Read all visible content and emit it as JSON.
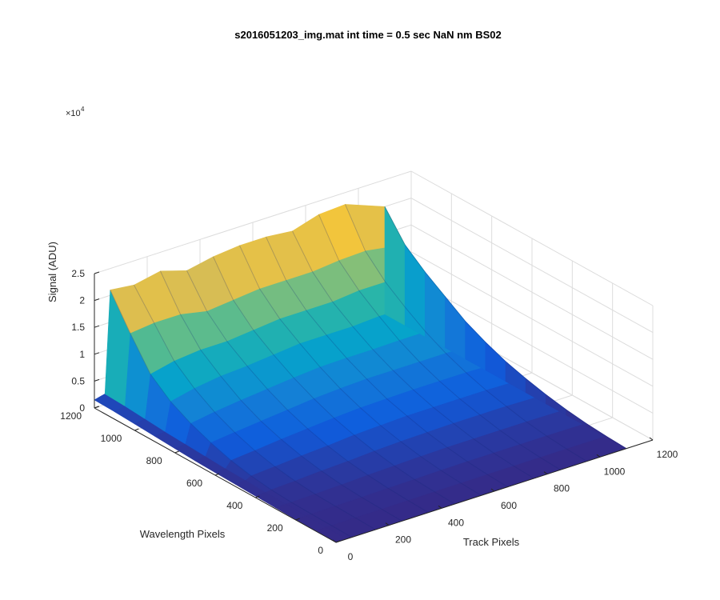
{
  "chart_data": {
    "type": "area",
    "title": "s2016051203_img.mat int time = 0.5 sec  NaN nm BS02",
    "xlabel": "Track Pixels",
    "ylabel": "Wavelength Pixels",
    "zlabel": "Signal (ADU)",
    "z_exponent_base": "×10",
    "z_exponent": "4",
    "xlim": [
      0,
      1200
    ],
    "ylim": [
      0,
      1200
    ],
    "zlim": [
      0,
      25000
    ],
    "x_ticks": [
      "0",
      "200",
      "400",
      "600",
      "800",
      "1000",
      "1200"
    ],
    "y_ticks": [
      "0",
      "200",
      "400",
      "600",
      "800",
      "1000",
      "1200"
    ],
    "z_ticks": [
      "0",
      "0.5",
      "1",
      "1.5",
      "2",
      "2.5"
    ],
    "grid": true,
    "colormap": [
      "#352a87",
      "#0f5cdd",
      "#1481d6",
      "#06a4ca",
      "#2eb7a4",
      "#87bf77",
      "#d1bb59",
      "#fec832",
      "#f9fb0e"
    ],
    "surface": {
      "track_extent": [
        0,
        1100
      ],
      "wavelength_extent": [
        0,
        1200
      ],
      "series": [
        {
          "wavelength": 1200,
          "values": [
            1500,
            2000,
            21000,
            20500,
            21500,
            20000,
            21000,
            21500,
            21500,
            21000,
            22500,
            22800,
            20000
          ]
        },
        {
          "wavelength": 1100,
          "values": [
            1400,
            1800,
            15000,
            15500,
            15500,
            14500,
            15000,
            15500,
            15500,
            15500,
            16000,
            16200,
            15000
          ]
        },
        {
          "wavelength": 1000,
          "values": [
            1200,
            1500,
            9500,
            10500,
            11000,
            11000,
            11500,
            12000,
            12000,
            12000,
            12500,
            12500,
            12000
          ]
        },
        {
          "wavelength": 900,
          "values": [
            1000,
            1200,
            6500,
            7500,
            8200,
            8500,
            9000,
            9500,
            9500,
            9500,
            9800,
            9800,
            9500
          ]
        },
        {
          "wavelength": 800,
          "values": [
            800,
            1000,
            4500,
            5200,
            5800,
            6300,
            6800,
            7200,
            7300,
            7300,
            7400,
            7400,
            7000
          ]
        },
        {
          "wavelength": 700,
          "values": [
            600,
            800,
            3000,
            3500,
            4000,
            4500,
            5000,
            5300,
            5500,
            5500,
            5500,
            5500,
            5200
          ]
        },
        {
          "wavelength": 600,
          "values": [
            500,
            600,
            1800,
            2200,
            2700,
            3100,
            3500,
            3800,
            3900,
            4000,
            4000,
            4000,
            3700
          ]
        },
        {
          "wavelength": 500,
          "values": [
            400,
            500,
            1000,
            1300,
            1700,
            2000,
            2400,
            2600,
            2800,
            2800,
            2800,
            2800,
            2600
          ]
        },
        {
          "wavelength": 400,
          "values": [
            300,
            350,
            500,
            700,
            1000,
            1200,
            1500,
            1700,
            1800,
            1900,
            1900,
            1900,
            1700
          ]
        },
        {
          "wavelength": 300,
          "values": [
            200,
            250,
            250,
            350,
            500,
            700,
            850,
            1000,
            1100,
            1100,
            1100,
            1100,
            1000
          ]
        },
        {
          "wavelength": 200,
          "values": [
            100,
            150,
            150,
            200,
            250,
            350,
            400,
            500,
            550,
            550,
            550,
            550,
            500
          ]
        },
        {
          "wavelength": 100,
          "values": [
            50,
            80,
            80,
            100,
            120,
            150,
            180,
            200,
            220,
            220,
            220,
            220,
            200
          ]
        },
        {
          "wavelength": 0,
          "values": [
            0,
            0,
            0,
            0,
            0,
            0,
            0,
            0,
            0,
            0,
            0,
            0,
            0
          ]
        }
      ],
      "track_samples": [
        0,
        40,
        60,
        150,
        250,
        350,
        450,
        550,
        650,
        750,
        850,
        950,
        1100
      ]
    }
  }
}
